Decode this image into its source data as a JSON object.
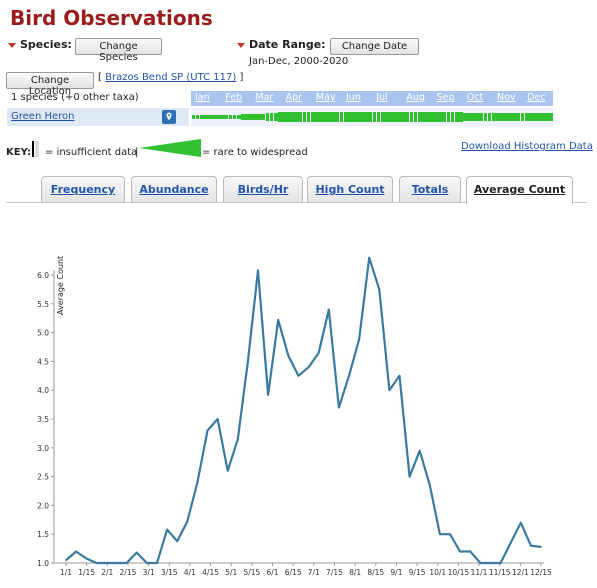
{
  "header": {
    "title": "Bird Observations"
  },
  "species": {
    "label": "Species:",
    "button": "Change Species"
  },
  "date_range": {
    "label": "Date Range:",
    "button": "Change Date",
    "value": "Jan-Dec, 2000-2020"
  },
  "location": {
    "button": "Change Location",
    "bracket_open": "[",
    "link": "Brazos Bend SP (UTC 117)",
    "bracket_close": "]"
  },
  "species_count": "1 species (+0 other taxa)",
  "species_list": [
    {
      "name": "Green Heron",
      "icon": "map-marker-icon"
    }
  ],
  "months": [
    "Jan",
    "Feb",
    "Mar",
    "Apr",
    "May",
    "Jun",
    "Jul",
    "Aug",
    "Sep",
    "Oct",
    "Nov",
    "Dec"
  ],
  "histogram_levels": [
    0.3,
    0.3,
    0.3,
    0.3,
    0.3,
    0.3,
    0.3,
    0.3,
    0.3,
    0.3,
    0.35,
    0.35,
    0.4,
    0.4,
    0.45,
    0.5,
    0.55,
    0.6,
    0.65,
    0.75,
    0.8,
    0.9,
    0.95,
    1.0,
    1,
    1,
    1,
    1,
    1,
    1,
    1,
    1,
    1,
    1,
    1,
    1,
    1,
    1,
    1,
    1,
    1,
    1,
    1,
    1,
    1,
    1,
    1,
    1,
    1,
    1,
    1,
    1,
    1,
    1,
    1,
    1,
    1,
    1,
    1,
    1,
    1,
    1,
    1,
    1,
    0.9,
    0.9,
    0.85,
    0.85,
    0.8,
    0.8,
    0.8,
    0.8,
    0.75,
    0.7,
    0.7,
    0.7,
    0.7,
    0.7,
    0.7,
    0.7,
    0.7,
    0.7,
    0.7,
    0.7,
    0.7,
    0.7,
    0.7,
    0.7
  ],
  "key": {
    "label": "KEY:",
    "insufficient": "= insufficient data",
    "bracket": "|",
    "rare": "= rare to widespread"
  },
  "download_link": "Download Histogram Data",
  "tabs": [
    {
      "label": "Frequency",
      "active": false
    },
    {
      "label": "Abundance",
      "active": false
    },
    {
      "label": "Birds/Hr",
      "active": false
    },
    {
      "label": "High Count",
      "active": false
    },
    {
      "label": "Totals",
      "active": false
    },
    {
      "label": "Average Count",
      "active": true
    }
  ],
  "chart_data": {
    "type": "line",
    "ylabel": "Average Count",
    "ylim": [
      1.0,
      6.0
    ],
    "yticks": [
      "1.0",
      "1.5",
      "2.0",
      "2.5",
      "3.0",
      "3.5",
      "4.0",
      "4.5",
      "5.0",
      "5.5",
      "6.0"
    ],
    "xtick_labels": [
      "1/1",
      "1/15",
      "2/1",
      "2/15",
      "3/1",
      "3/15",
      "4/1",
      "4/15",
      "5/1",
      "5/15",
      "6/1",
      "6/15",
      "7/1",
      "7/15",
      "8/1",
      "8/15",
      "9/1",
      "9/15",
      "10/1",
      "10/15",
      "11/1",
      "11/15",
      "12/1",
      "12/15"
    ],
    "series_color": "#3a7aa0",
    "values": [
      1.05,
      1.2,
      1.08,
      1.0,
      1.0,
      1.0,
      1.0,
      1.18,
      1.0,
      1.0,
      1.58,
      1.38,
      1.72,
      2.4,
      3.3,
      3.5,
      2.6,
      3.15,
      4.5,
      6.08,
      3.92,
      5.22,
      4.6,
      4.25,
      4.4,
      4.65,
      5.4,
      3.7,
      4.25,
      4.88,
      6.3,
      5.75,
      4.0,
      4.25,
      2.5,
      2.95,
      2.35,
      1.5,
      1.5,
      1.2,
      1.2,
      1.0,
      1.0,
      1.0,
      1.35,
      1.7,
      1.3,
      1.28
    ]
  }
}
